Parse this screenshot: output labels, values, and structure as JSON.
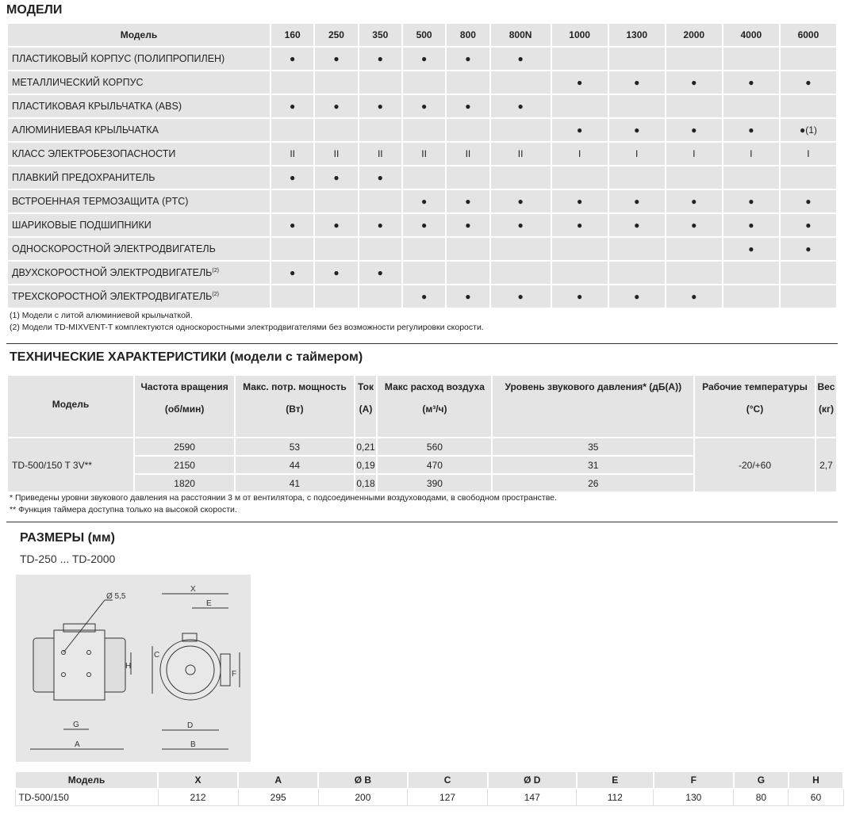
{
  "models_section": {
    "title": "МОДЕЛИ",
    "header_label": "Модель",
    "columns": [
      "160",
      "250",
      "350",
      "500",
      "800",
      "800N",
      "1000",
      "1300",
      "2000",
      "4000",
      "6000"
    ],
    "rows": [
      {
        "label": "ПЛАСТИКОВЫЙ КОРПУС (ПОЛИПРОПИЛЕН)",
        "sup": "",
        "cells": [
          "●",
          "●",
          "●",
          "●",
          "●",
          "●",
          "",
          "",
          "",
          "",
          ""
        ]
      },
      {
        "label": "МЕТАЛЛИЧЕСКИЙ КОРПУС",
        "sup": "",
        "cells": [
          "",
          "",
          "",
          "",
          "",
          "",
          "●",
          "●",
          "●",
          "●",
          "●"
        ]
      },
      {
        "label": "ПЛАСТИКОВАЯ КРЫЛЬЧАТКА (ABS)",
        "sup": "",
        "cells": [
          "●",
          "●",
          "●",
          "●",
          "●",
          "●",
          "",
          "",
          "",
          "",
          ""
        ]
      },
      {
        "label": "АЛЮМИНИЕВАЯ КРЫЛЬЧАТКА",
        "sup": "",
        "cells": [
          "",
          "",
          "",
          "",
          "",
          "",
          "●",
          "●",
          "●",
          "●",
          "●(1)"
        ]
      },
      {
        "label": "КЛАСС ЭЛЕКТРОБЕЗОПАСНОСТИ",
        "sup": "",
        "cells": [
          "II",
          "II",
          "II",
          "II",
          "II",
          "II",
          "I",
          "I",
          "I",
          "I",
          "I"
        ]
      },
      {
        "label": "ПЛАВКИЙ ПРЕДОХРАНИТЕЛЬ",
        "sup": "",
        "cells": [
          "●",
          "●",
          "●",
          "",
          "",
          "",
          "",
          "",
          "",
          "",
          ""
        ]
      },
      {
        "label": "ВСТРОЕННАЯ ТЕРМОЗАЩИТА (PTC)",
        "sup": "",
        "cells": [
          "",
          "",
          "",
          "●",
          "●",
          "●",
          "●",
          "●",
          "●",
          "●",
          "●"
        ]
      },
      {
        "label": "ШАРИКОВЫЕ ПОДШИПНИКИ",
        "sup": "",
        "cells": [
          "●",
          "●",
          "●",
          "●",
          "●",
          "●",
          "●",
          "●",
          "●",
          "●",
          "●"
        ]
      },
      {
        "label": "ОДНОСКОРОСТНОЙ ЭЛЕКТРОДВИГАТЕЛЬ",
        "sup": "",
        "cells": [
          "",
          "",
          "",
          "",
          "",
          "",
          "",
          "",
          "",
          "●",
          "●"
        ]
      },
      {
        "label": "ДВУХСКОРОСТНОЙ ЭЛЕКТРОДВИГАТЕЛЬ",
        "sup": "(2)",
        "cells": [
          "●",
          "●",
          "●",
          "",
          "",
          "",
          "",
          "",
          "",
          "",
          ""
        ]
      },
      {
        "label": "ТРЕХСКОРОСТНОЙ ЭЛЕКТРОДВИГАТЕЛЬ",
        "sup": "(2)",
        "cells": [
          "",
          "",
          "",
          "●",
          "●",
          "●",
          "●",
          "●",
          "●",
          "",
          ""
        ]
      }
    ],
    "notes": [
      "(1) Модели с литой алюминиевой крыльчаткой.",
      "(2) Модели TD-MIXVENT-T комплектуются односкоростными электродвигателями без возможности регулировки скорости."
    ]
  },
  "tech_section": {
    "title": "ТЕХНИЧЕСКИЕ ХАРАКТЕРИСТИКИ (модели с таймером)",
    "headers": [
      [
        "Модель",
        ""
      ],
      [
        "Частота вращения",
        "(об/мин)"
      ],
      [
        "Макс.  потр. мощность",
        "(Вт)"
      ],
      [
        "Ток",
        "(A)"
      ],
      [
        "Макс расход воздуха",
        "(м³/ч)"
      ],
      [
        "Уровень звукового давления* (дБ(A))",
        ""
      ],
      [
        "Рабочие температуры",
        "(°C)"
      ],
      [
        "Вес",
        "(кг)"
      ]
    ],
    "model": "TD-500/150 T 3V**",
    "temperature": "-20/+60",
    "weight": "2,7",
    "rows": [
      [
        "2590",
        "53",
        "0,21",
        "560",
        "35"
      ],
      [
        "2150",
        "44",
        "0,19",
        "470",
        "31"
      ],
      [
        "1820",
        "41",
        "0,18",
        "390",
        "26"
      ]
    ],
    "notes": [
      "* Приведены уровни звукового давления на расстоянии 3 м от вентилятора, с подсоединенными воздуховодами, в свободном пространстве.",
      "** Функция таймера доступна только на высокой скорости."
    ]
  },
  "dimensions_section": {
    "title": "РАЗМЕРЫ (мм)",
    "subtitle": "TD-250 ... TD-2000",
    "diagram_labels": {
      "hole": "Ø 5,5",
      "x": "X",
      "e": "E",
      "c": "C",
      "f": "F",
      "h": "H",
      "g": "G",
      "a": "A",
      "d": "D",
      "b": "B"
    },
    "headers": [
      "Модель",
      "X",
      "A",
      "Ø B",
      "C",
      "Ø D",
      "E",
      "F",
      "G",
      "H"
    ],
    "rows": [
      [
        "TD-500/150",
        "212",
        "295",
        "200",
        "127",
        "147",
        "112",
        "130",
        "80",
        "60"
      ]
    ]
  }
}
